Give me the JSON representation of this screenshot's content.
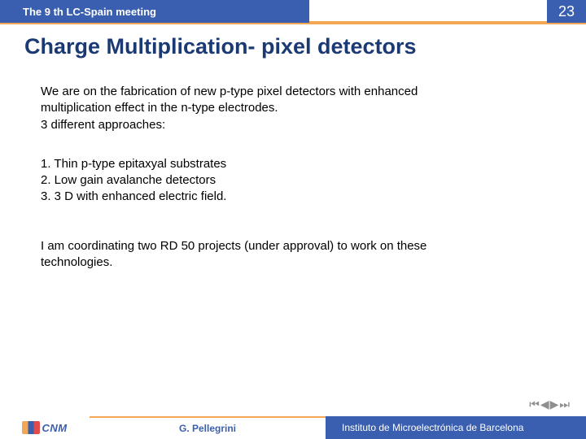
{
  "header": {
    "title": "The 9 th LC-Spain meeting",
    "page_number": "23",
    "bar_color": "#3a5fb0",
    "accent_color": "#f2a755"
  },
  "slide": {
    "title": "Charge Multiplication- pixel detectors",
    "title_color": "#1b3a73"
  },
  "content": {
    "intro_l1": "We are on the fabrication of new p-type pixel detectors with enhanced",
    "intro_l2": "multiplication effect in the n-type electrodes.",
    "intro_l3": "3 different approaches:",
    "item1": "1. Thin p-type epitaxyal substrates",
    "item2": "2. Low gain avalanche detectors",
    "item3": "3. 3 D with enhanced electric field.",
    "closing_l1": "I am coordinating two RD 50 projects (under approval) to work on these",
    "closing_l2": "technologies."
  },
  "footer": {
    "logo_text": "CNM",
    "author": "G. Pellegrini",
    "institute": "Instituto de Microelectrónica de Barcelona"
  },
  "nav": {
    "first": "⏮",
    "prev": "◀",
    "next": "▶",
    "last": "⏭"
  }
}
